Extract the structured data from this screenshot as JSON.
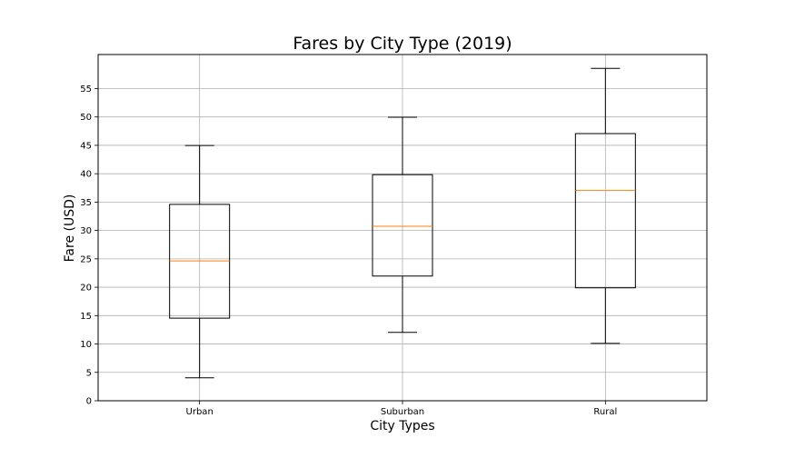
{
  "chart_data": {
    "type": "box",
    "title": "Fares by City Type (2019)",
    "xlabel": "City Types",
    "ylabel": "Fare (USD)",
    "ylim": [
      0,
      61
    ],
    "yticks": [
      0,
      5,
      10,
      15,
      20,
      25,
      30,
      35,
      40,
      45,
      50,
      55
    ],
    "grid": true,
    "categories": [
      "Urban",
      "Suburban",
      "Rural"
    ],
    "boxes": [
      {
        "category": "Urban",
        "whisker_low": 4.05,
        "q1": 14.55,
        "median": 24.64,
        "q3": 34.6,
        "whisker_high": 44.97
      },
      {
        "category": "Suburban",
        "whisker_low": 12.05,
        "q1": 21.97,
        "median": 30.75,
        "q3": 39.83,
        "whisker_high": 49.96
      },
      {
        "category": "Rural",
        "whisker_low": 10.11,
        "q1": 19.9,
        "median": 37.05,
        "q3": 47.07,
        "whisker_high": 58.55
      }
    ],
    "colors": {
      "box": "#000000",
      "median": "#ff7f0e",
      "grid": "#b0b0b0"
    }
  }
}
